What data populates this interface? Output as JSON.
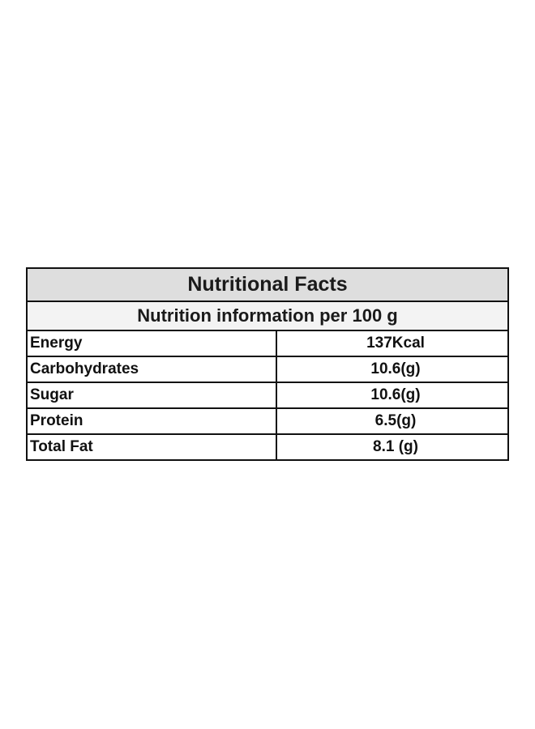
{
  "table": {
    "title": "Nutritional Facts",
    "subtitle": "Nutrition information per 100 g",
    "rows": [
      [
        "Energy",
        "137Kcal"
      ],
      [
        "Carbohydrates",
        "10.6(g)"
      ],
      [
        "Sugar",
        "10.6(g)"
      ],
      [
        "Protein",
        "6.5(g)"
      ],
      [
        "Total Fat",
        "8.1 (g)"
      ]
    ]
  }
}
